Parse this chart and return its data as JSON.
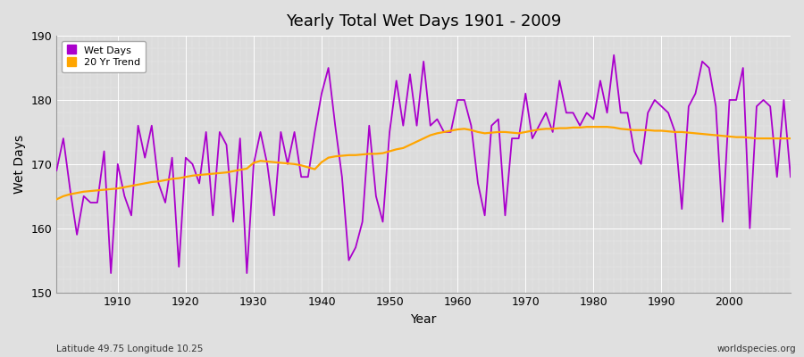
{
  "title": "Yearly Total Wet Days 1901 - 2009",
  "xlabel": "Year",
  "ylabel": "Wet Days",
  "bottom_left_label": "Latitude 49.75 Longitude 10.25",
  "bottom_right_label": "worldspecies.org",
  "ylim": [
    150,
    190
  ],
  "xlim": [
    1901,
    2009
  ],
  "yticks": [
    150,
    160,
    170,
    180,
    190
  ],
  "xticks": [
    1910,
    1920,
    1930,
    1940,
    1950,
    1960,
    1970,
    1980,
    1990,
    2000
  ],
  "wet_days_color": "#AA00CC",
  "trend_color": "#FFA500",
  "background_color": "#E0E0E0",
  "plot_bg_color": "#DCDCDC",
  "grid_color": "#FFFFFF",
  "wet_days": {
    "1901": 169,
    "1902": 174,
    "1903": 166,
    "1904": 159,
    "1905": 165,
    "1906": 164,
    "1907": 164,
    "1908": 172,
    "1909": 153,
    "1910": 170,
    "1911": 165,
    "1912": 162,
    "1913": 176,
    "1914": 171,
    "1915": 176,
    "1916": 167,
    "1917": 164,
    "1918": 171,
    "1919": 154,
    "1920": 171,
    "1921": 170,
    "1922": 167,
    "1923": 175,
    "1924": 162,
    "1925": 175,
    "1926": 173,
    "1927": 161,
    "1928": 174,
    "1929": 153,
    "1930": 170,
    "1931": 175,
    "1932": 170,
    "1933": 162,
    "1934": 175,
    "1935": 170,
    "1936": 175,
    "1937": 168,
    "1938": 168,
    "1939": 175,
    "1940": 181,
    "1941": 185,
    "1942": 176,
    "1943": 168,
    "1944": 155,
    "1945": 157,
    "1946": 161,
    "1947": 176,
    "1948": 165,
    "1949": 161,
    "1950": 175,
    "1951": 183,
    "1952": 176,
    "1953": 184,
    "1954": 176,
    "1955": 186,
    "1956": 176,
    "1957": 177,
    "1958": 175,
    "1959": 175,
    "1960": 180,
    "1961": 180,
    "1962": 176,
    "1963": 167,
    "1964": 162,
    "1965": 176,
    "1966": 177,
    "1967": 162,
    "1968": 174,
    "1969": 174,
    "1970": 181,
    "1971": 174,
    "1972": 176,
    "1973": 178,
    "1974": 175,
    "1975": 183,
    "1976": 178,
    "1977": 178,
    "1978": 176,
    "1979": 178,
    "1980": 177,
    "1981": 183,
    "1982": 178,
    "1983": 187,
    "1984": 178,
    "1985": 178,
    "1986": 172,
    "1987": 170,
    "1988": 178,
    "1989": 180,
    "1990": 179,
    "1991": 178,
    "1992": 175,
    "1993": 163,
    "1994": 179,
    "1995": 181,
    "1996": 186,
    "1997": 185,
    "1998": 179,
    "1999": 161,
    "2000": 180,
    "2001": 180,
    "2002": 185,
    "2003": 160,
    "2004": 179,
    "2005": 180,
    "2006": 179,
    "2007": 168,
    "2008": 180,
    "2009": 168
  },
  "trend": {
    "1901": 164.5,
    "1902": 165.0,
    "1903": 165.3,
    "1904": 165.5,
    "1905": 165.7,
    "1906": 165.8,
    "1907": 165.9,
    "1908": 166.0,
    "1909": 166.1,
    "1910": 166.2,
    "1911": 166.4,
    "1912": 166.6,
    "1913": 166.8,
    "1914": 167.0,
    "1915": 167.2,
    "1916": 167.3,
    "1917": 167.5,
    "1918": 167.7,
    "1919": 167.8,
    "1920": 168.0,
    "1921": 168.2,
    "1922": 168.3,
    "1923": 168.4,
    "1924": 168.5,
    "1925": 168.6,
    "1926": 168.7,
    "1927": 168.9,
    "1928": 169.1,
    "1929": 169.3,
    "1930": 170.2,
    "1931": 170.5,
    "1932": 170.4,
    "1933": 170.3,
    "1934": 170.2,
    "1935": 170.1,
    "1936": 170.0,
    "1937": 169.8,
    "1938": 169.5,
    "1939": 169.2,
    "1940": 170.3,
    "1941": 171.0,
    "1942": 171.2,
    "1943": 171.3,
    "1944": 171.4,
    "1945": 171.4,
    "1946": 171.5,
    "1947": 171.6,
    "1948": 171.6,
    "1949": 171.7,
    "1950": 172.0,
    "1951": 172.3,
    "1952": 172.5,
    "1953": 173.0,
    "1954": 173.5,
    "1955": 174.0,
    "1956": 174.5,
    "1957": 174.8,
    "1958": 175.0,
    "1959": 175.2,
    "1960": 175.4,
    "1961": 175.5,
    "1962": 175.3,
    "1963": 175.0,
    "1964": 174.8,
    "1965": 174.9,
    "1966": 175.0,
    "1967": 175.0,
    "1968": 174.9,
    "1969": 174.8,
    "1970": 175.0,
    "1971": 175.2,
    "1972": 175.4,
    "1973": 175.5,
    "1974": 175.5,
    "1975": 175.6,
    "1976": 175.6,
    "1977": 175.7,
    "1978": 175.7,
    "1979": 175.8,
    "1980": 175.8,
    "1981": 175.8,
    "1982": 175.8,
    "1983": 175.7,
    "1984": 175.5,
    "1985": 175.4,
    "1986": 175.3,
    "1987": 175.3,
    "1988": 175.3,
    "1989": 175.2,
    "1990": 175.2,
    "1991": 175.1,
    "1992": 175.0,
    "1993": 175.0,
    "1994": 174.9,
    "1995": 174.8,
    "1996": 174.7,
    "1997": 174.6,
    "1998": 174.5,
    "1999": 174.4,
    "2000": 174.3,
    "2001": 174.2,
    "2002": 174.2,
    "2003": 174.1,
    "2004": 174.0,
    "2005": 174.0,
    "2006": 174.0,
    "2007": 174.0,
    "2008": 174.0,
    "2009": 174.0
  }
}
